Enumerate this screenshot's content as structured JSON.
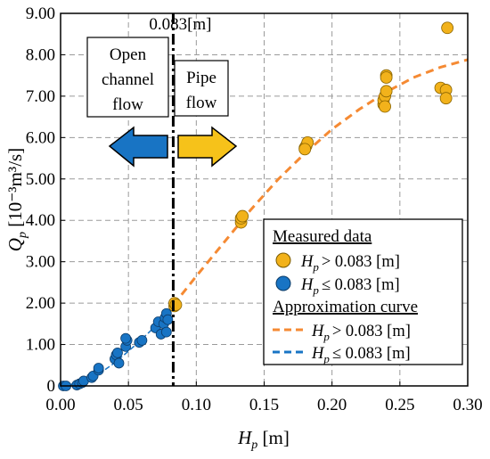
{
  "chart_data": {
    "type": "scatter",
    "xlabel": "H",
    "xlabel_sub": "p",
    "xlabel_unit": " [m]",
    "ylabel": "Q",
    "ylabel_sub": "p",
    "ylabel_unit": " [10⁻³m³/s]",
    "xlim": [
      0.0,
      0.3
    ],
    "ylim": [
      0.0,
      9.0
    ],
    "x_ticks": [
      0.0,
      0.05,
      0.1,
      0.15,
      0.2,
      0.25,
      0.3
    ],
    "x_tick_labels": [
      "0.00",
      "0.05",
      "0.10",
      "0.15",
      "0.20",
      "0.25",
      "0.30"
    ],
    "y_ticks": [
      0,
      1,
      2,
      3,
      4,
      5,
      6,
      7,
      8,
      9
    ],
    "y_tick_labels": [
      "0",
      "1.00",
      "2.00",
      "3.00",
      "4.00",
      "5.00",
      "6.00",
      "7.00",
      "8.00",
      "9.00"
    ],
    "grid": true,
    "legend_position": "lower-right",
    "colors": {
      "orange": "#F2B21B",
      "blue": "#1874C4",
      "orange_curve": "#F58A33",
      "blue_curve": "#1874C4"
    },
    "threshold": {
      "x": 0.083,
      "label": "0.083[m]"
    },
    "annotations": {
      "open_channel": [
        "Open",
        "channel",
        "flow"
      ],
      "pipe_flow": [
        "Pipe",
        "flow"
      ]
    },
    "legend": {
      "measured_title": "Measured data",
      "approx_title": "Approximation curve",
      "item_gt": "> 0.083 [m]",
      "item_le": "≤ 0.083 [m]",
      "var": "H",
      "var_sub": "p"
    },
    "series": [
      {
        "name": "H_p > 0.083 [m] (measured)",
        "color": "#F2B21B",
        "points": [
          [
            0.084,
            1.93
          ],
          [
            0.084,
            2.0
          ],
          [
            0.085,
            1.96
          ],
          [
            0.133,
            3.95
          ],
          [
            0.133,
            4.05
          ],
          [
            0.134,
            4.1
          ],
          [
            0.18,
            5.75
          ],
          [
            0.181,
            5.8
          ],
          [
            0.182,
            5.88
          ],
          [
            0.18,
            5.72
          ],
          [
            0.238,
            6.8
          ],
          [
            0.238,
            6.9
          ],
          [
            0.239,
            7.0
          ],
          [
            0.24,
            7.12
          ],
          [
            0.24,
            7.5
          ],
          [
            0.24,
            7.45
          ],
          [
            0.239,
            6.75
          ],
          [
            0.28,
            7.2
          ],
          [
            0.284,
            7.15
          ],
          [
            0.284,
            6.95
          ],
          [
            0.285,
            8.65
          ]
        ]
      },
      {
        "name": "H_p ≤ 0.083 [m] (measured)",
        "color": "#1874C4",
        "points": [
          [
            0.002,
            0.0
          ],
          [
            0.004,
            0.0
          ],
          [
            0.012,
            0.02
          ],
          [
            0.014,
            0.05
          ],
          [
            0.016,
            0.08
          ],
          [
            0.017,
            0.12
          ],
          [
            0.023,
            0.2
          ],
          [
            0.024,
            0.24
          ],
          [
            0.028,
            0.38
          ],
          [
            0.028,
            0.43
          ],
          [
            0.04,
            0.65
          ],
          [
            0.041,
            0.75
          ],
          [
            0.042,
            0.8
          ],
          [
            0.043,
            0.55
          ],
          [
            0.048,
            0.95
          ],
          [
            0.049,
            1.1
          ],
          [
            0.048,
            1.15
          ],
          [
            0.058,
            1.05
          ],
          [
            0.06,
            1.1
          ],
          [
            0.07,
            1.4
          ],
          [
            0.072,
            1.55
          ],
          [
            0.074,
            1.25
          ],
          [
            0.076,
            1.5
          ],
          [
            0.077,
            1.65
          ],
          [
            0.078,
            1.75
          ],
          [
            0.078,
            1.3
          ],
          [
            0.079,
            1.6
          ]
        ]
      },
      {
        "name": "H_p > 0.083 [m] (approximation)",
        "color": "#F58A33",
        "curve": [
          [
            0.083,
            1.95
          ],
          [
            0.1,
            2.65
          ],
          [
            0.12,
            3.45
          ],
          [
            0.14,
            4.25
          ],
          [
            0.16,
            4.98
          ],
          [
            0.18,
            5.62
          ],
          [
            0.2,
            6.2
          ],
          [
            0.22,
            6.68
          ],
          [
            0.24,
            7.1
          ],
          [
            0.26,
            7.45
          ],
          [
            0.28,
            7.7
          ],
          [
            0.3,
            7.88
          ]
        ]
      },
      {
        "name": "H_p ≤ 0.083 [m] (approximation)",
        "color": "#1874C4",
        "curve": [
          [
            0.0,
            0.0
          ],
          [
            0.01,
            0.05
          ],
          [
            0.02,
            0.15
          ],
          [
            0.03,
            0.33
          ],
          [
            0.04,
            0.56
          ],
          [
            0.05,
            0.84
          ],
          [
            0.06,
            1.13
          ],
          [
            0.07,
            1.45
          ],
          [
            0.083,
            1.95
          ]
        ]
      }
    ]
  }
}
